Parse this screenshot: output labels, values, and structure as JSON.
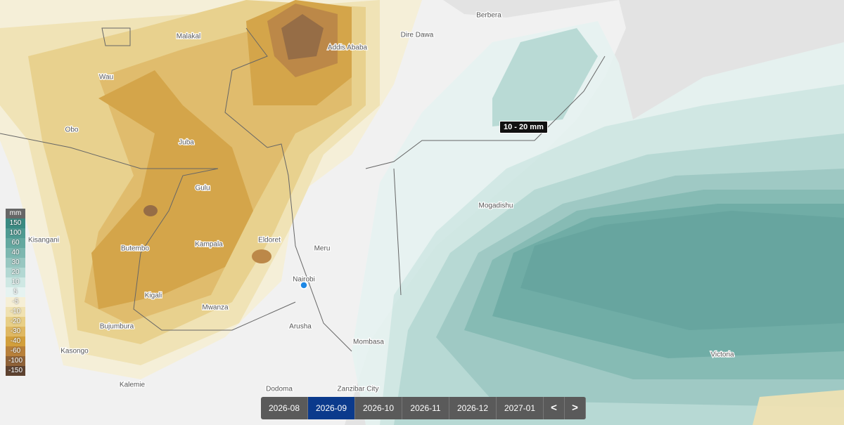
{
  "map": {
    "places": [
      "Berbera",
      "Malakal",
      "Dire Dawa",
      "Addis Ababa",
      "Wau",
      "Obo",
      "Juba",
      "Gulu",
      "Mogadishu",
      "Kisangani",
      "Eldoret",
      "Kampala",
      "Butembo",
      "Meru",
      "Nairobi",
      "Kigali",
      "Mwanza",
      "Bujumbura",
      "Arusha",
      "Mombasa",
      "Kasongo",
      "Victoria",
      "Kalemie",
      "Dodoma",
      "Zanzibar City"
    ]
  },
  "tooltip": "10 - 20 mm",
  "legend": {
    "unit": "mm",
    "items": [
      {
        "label": 150,
        "color": "#3a8a82"
      },
      {
        "label": 100,
        "color": "#4f9a92"
      },
      {
        "label": 60,
        "color": "#64a8a0"
      },
      {
        "label": 40,
        "color": "#7db7b0"
      },
      {
        "label": 30,
        "color": "#98c7c1"
      },
      {
        "label": 20,
        "color": "#b3d8d3"
      },
      {
        "label": 10,
        "color": "#cfe8e4"
      },
      {
        "label": 5,
        "color": "#e6f3f1"
      },
      {
        "label": -5,
        "color": "#f6efd6"
      },
      {
        "label": -10,
        "color": "#f0e2b2"
      },
      {
        "label": -20,
        "color": "#e8cf86"
      },
      {
        "label": -30,
        "color": "#dfb862"
      },
      {
        "label": -40,
        "color": "#d29f3c"
      },
      {
        "label": -60,
        "color": "#b8803a"
      },
      {
        "label": -100,
        "color": "#8f6238"
      },
      {
        "label": -150,
        "color": "#5e4230"
      }
    ]
  },
  "timeline": {
    "months": [
      "2026-08",
      "2026-09",
      "2026-10",
      "2026-11",
      "2026-12",
      "2027-01"
    ],
    "selected": 1,
    "prev": "<",
    "next": ">"
  }
}
